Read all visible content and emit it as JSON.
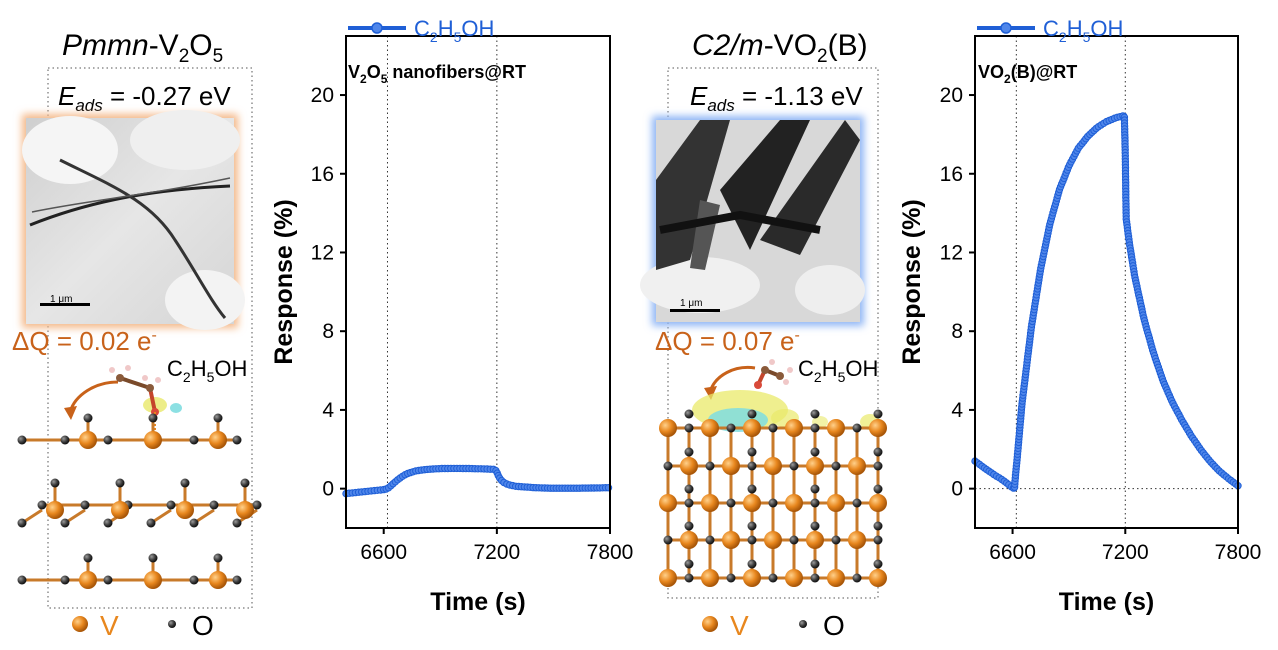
{
  "colors": {
    "series": "#1f5fd6",
    "accent_orange": "#c8621a",
    "axis": "#000000",
    "vanadium": "#e8871e",
    "oxygen": "#3a3a3a",
    "tem_glow_left": "#f4b98a",
    "tem_glow_right": "#8fb6f5"
  },
  "panel_left": {
    "phase_prefix": "Pmmn",
    "phase_suffix": "-V",
    "phase_sub1": "2",
    "phase_mid": "O",
    "phase_sub2": "5",
    "eads_label": "E",
    "eads_sub": "ads",
    "eads_value": " = -0.27 eV",
    "scale_bar": "1 μm",
    "dq_text": "ΔQ = 0.02 e",
    "dq_sup": "-",
    "molecule_c": "C",
    "molecule_sub1": "2",
    "molecule_h": "H",
    "molecule_sub2": "5",
    "molecule_oh": "OH",
    "legend_v": "V",
    "legend_o": "O",
    "icon": "crystal-structure-icon"
  },
  "panel_right": {
    "phase_prefix": "C2/m",
    "phase_suffix": "-VO",
    "phase_sub1": "2",
    "phase_tail": "(B)",
    "eads_label": "E",
    "eads_sub": "ads",
    "eads_value": " = -1.13 eV",
    "scale_bar": "1 μm",
    "dq_text": "ΔQ = 0.07 e",
    "dq_sup": "-",
    "molecule_c": "C",
    "molecule_sub1": "2",
    "molecule_h": "H",
    "molecule_sub2": "5",
    "molecule_oh": "OH",
    "legend_v": "V",
    "legend_o": "O",
    "icon": "crystal-structure-icon"
  },
  "chart_data": [
    {
      "type": "line",
      "legend": {
        "c": "C",
        "s1": "2",
        "h": "H",
        "s2": "5",
        "oh": "OH"
      },
      "legend_placement": "top-left, above plot",
      "annotation": {
        "a": "V",
        "s1": "2",
        "b": "O",
        "s2": "5",
        "c": " nanofibers@RT"
      },
      "xlabel": "Time (s)",
      "ylabel": "Response (%)",
      "xlim": [
        6400,
        7800
      ],
      "ylim": [
        -2,
        23
      ],
      "xticks": [
        "6600",
        "7200",
        "7800"
      ],
      "yticks": [
        "0",
        "4",
        "8",
        "12",
        "16",
        "20"
      ],
      "xtick_values": [
        6600,
        7200,
        7800
      ],
      "ytick_values": [
        0,
        4,
        8,
        12,
        16,
        20
      ],
      "vlines": [
        6620,
        7200
      ],
      "hline": null,
      "series": [
        {
          "name": "C2H5OH",
          "points": [
            [
              6400,
              -0.25
            ],
            [
              6450,
              -0.2
            ],
            [
              6500,
              -0.15
            ],
            [
              6550,
              -0.1
            ],
            [
              6600,
              -0.05
            ],
            [
              6620,
              0.0
            ],
            [
              6650,
              0.25
            ],
            [
              6680,
              0.5
            ],
            [
              6720,
              0.75
            ],
            [
              6770,
              0.9
            ],
            [
              6830,
              0.98
            ],
            [
              6900,
              1.02
            ],
            [
              6980,
              1.03
            ],
            [
              7060,
              1.02
            ],
            [
              7140,
              1.0
            ],
            [
              7190,
              0.98
            ],
            [
              7200,
              0.85
            ],
            [
              7210,
              0.6
            ],
            [
              7230,
              0.35
            ],
            [
              7260,
              0.2
            ],
            [
              7300,
              0.12
            ],
            [
              7400,
              0.05
            ],
            [
              7500,
              0.02
            ],
            [
              7600,
              0.02
            ],
            [
              7700,
              0.03
            ],
            [
              7800,
              0.05
            ]
          ]
        }
      ]
    },
    {
      "type": "line",
      "legend": {
        "c": "C",
        "s1": "2",
        "h": "H",
        "s2": "5",
        "oh": "OH"
      },
      "legend_placement": "top-left, above plot",
      "annotation": {
        "a": "VO",
        "s1": "2",
        "b": "(B)@RT"
      },
      "xlabel": "Time (s)",
      "ylabel": "Response (%)",
      "xlim": [
        6400,
        7800
      ],
      "ylim": [
        -2,
        23
      ],
      "xticks": [
        "6600",
        "7200",
        "7800"
      ],
      "yticks": [
        "0",
        "4",
        "8",
        "12",
        "16",
        "20"
      ],
      "xtick_values": [
        6600,
        7200,
        7800
      ],
      "ytick_values": [
        0,
        4,
        8,
        12,
        16,
        20
      ],
      "vlines": [
        6620,
        7200
      ],
      "hline": 0,
      "series": [
        {
          "name": "C2H5OH",
          "points": [
            [
              6400,
              1.4
            ],
            [
              6450,
              1.05
            ],
            [
              6500,
              0.72
            ],
            [
              6550,
              0.42
            ],
            [
              6580,
              0.2
            ],
            [
              6600,
              0.05
            ],
            [
              6610,
              0.0
            ],
            [
              6615,
              0.6
            ],
            [
              6625,
              1.6
            ],
            [
              6650,
              4.3
            ],
            [
              6700,
              8.2
            ],
            [
              6750,
              11.2
            ],
            [
              6800,
              13.5
            ],
            [
              6850,
              15.2
            ],
            [
              6900,
              16.4
            ],
            [
              6950,
              17.3
            ],
            [
              7000,
              17.9
            ],
            [
              7050,
              18.35
            ],
            [
              7100,
              18.65
            ],
            [
              7150,
              18.85
            ],
            [
              7195,
              18.95
            ],
            [
              7200,
              17.0
            ],
            [
              7203,
              14.8
            ],
            [
              7205,
              13.7
            ],
            [
              7220,
              12.6
            ],
            [
              7250,
              10.8
            ],
            [
              7300,
              8.6
            ],
            [
              7350,
              6.9
            ],
            [
              7400,
              5.5
            ],
            [
              7450,
              4.4
            ],
            [
              7500,
              3.5
            ],
            [
              7550,
              2.7
            ],
            [
              7600,
              2.0
            ],
            [
              7650,
              1.4
            ],
            [
              7700,
              0.9
            ],
            [
              7750,
              0.5
            ],
            [
              7800,
              0.15
            ]
          ]
        }
      ]
    }
  ]
}
